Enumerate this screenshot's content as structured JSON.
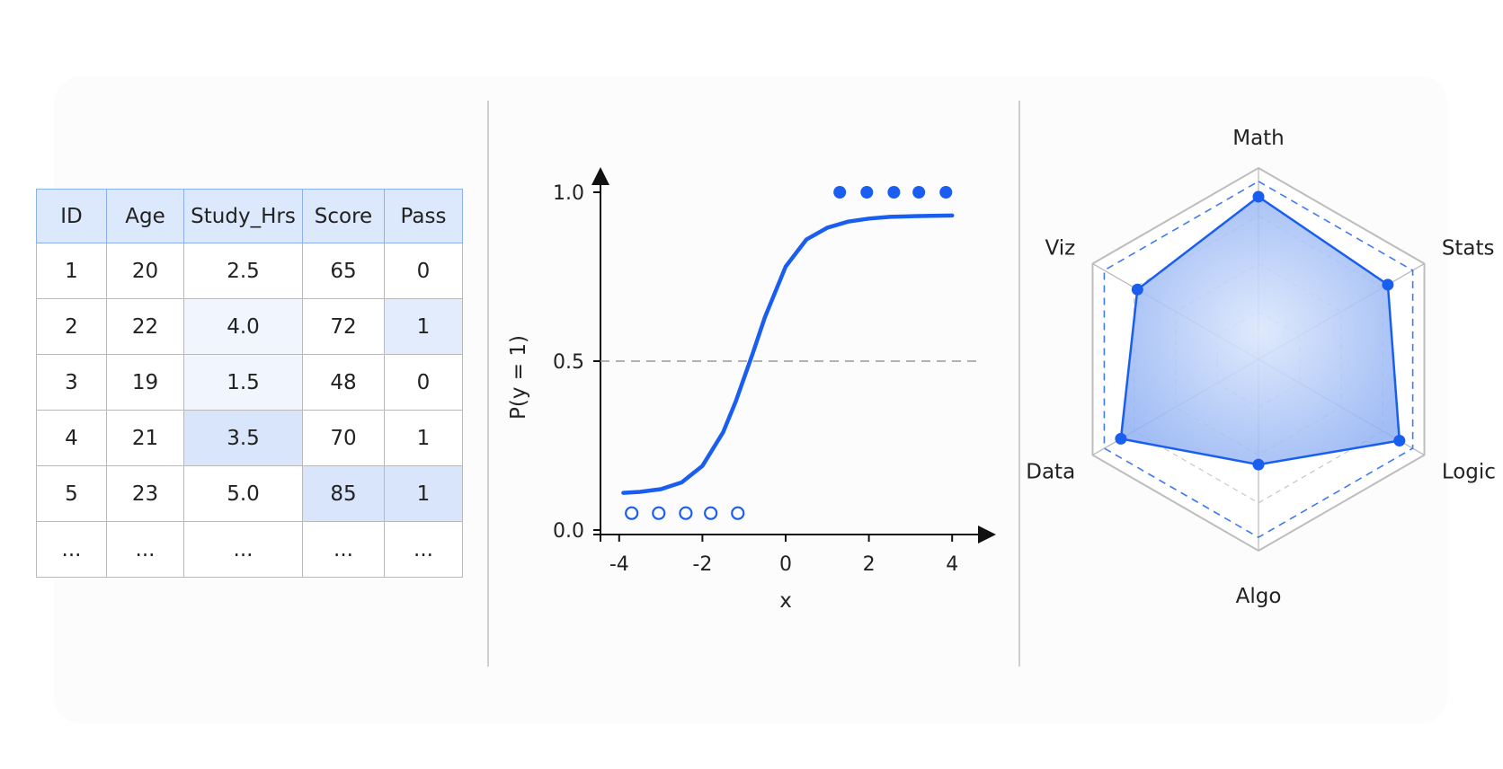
{
  "table": {
    "columns": [
      "ID",
      "Age",
      "Study_Hrs",
      "Score",
      "Pass"
    ],
    "rows": [
      [
        "1",
        "20",
        "2.5",
        "65",
        "0"
      ],
      [
        "2",
        "22",
        "4.0",
        "72",
        "1"
      ],
      [
        "3",
        "19",
        "1.5",
        "48",
        "0"
      ],
      [
        "4",
        "21",
        "3.5",
        "70",
        "1"
      ],
      [
        "5",
        "23",
        "5.0",
        "85",
        "1"
      ],
      [
        "...",
        "...",
        "...",
        "...",
        "..."
      ]
    ]
  },
  "chart_data": [
    {
      "type": "line",
      "title": "",
      "xlabel": "x",
      "ylabel": "P(y = 1)",
      "xlim": [
        -4.5,
        4.8
      ],
      "ylim": [
        0,
        1.05
      ],
      "x_ticks": [
        "-4",
        "-2",
        "0",
        "2",
        "4"
      ],
      "y_ticks": [
        "0.0",
        "0.5",
        "1.0"
      ],
      "threshold": 0.5,
      "grid": false,
      "series": [
        {
          "kind": "curve",
          "x": [
            -3.9,
            -3.5,
            -3.0,
            -2.5,
            -2.0,
            -1.5,
            -1.2,
            -1.0,
            -0.8,
            -0.5,
            0.0,
            0.5,
            1.0,
            1.5,
            2.0,
            2.5,
            3.0,
            3.5,
            4.0
          ],
          "values": [
            0.11,
            0.113,
            0.121,
            0.141,
            0.19,
            0.29,
            0.38,
            0.45,
            0.52,
            0.63,
            0.78,
            0.86,
            0.895,
            0.913,
            0.922,
            0.927,
            0.929,
            0.93,
            0.931
          ]
        },
        {
          "kind": "scatter-filled",
          "x": [
            1.3,
            1.95,
            2.6,
            3.2,
            3.85
          ],
          "values": [
            1.0,
            1.0,
            1.0,
            1.0,
            1.0
          ]
        },
        {
          "kind": "scatter-hollow",
          "x": [
            -3.7,
            -3.05,
            -2.4,
            -1.8,
            -1.15
          ],
          "values": [
            0.05,
            0.05,
            0.05,
            0.05,
            0.05
          ]
        }
      ]
    },
    {
      "type": "radar",
      "title": "",
      "categories": [
        "Math",
        "Stats",
        "Logic",
        "Algo",
        "Data",
        "Viz"
      ],
      "rmax": 1.0,
      "rings": 4,
      "series": [
        {
          "kind": "filled",
          "values": [
            0.85,
            0.78,
            0.85,
            0.55,
            0.83,
            0.73
          ]
        },
        {
          "kind": "dashed",
          "values": [
            0.93,
            0.93,
            0.93,
            0.93,
            0.93,
            0.93
          ]
        }
      ]
    }
  ],
  "colors": {
    "accent": "#1a5ef0",
    "fill": "#9dbaf4",
    "header": "#dce8fb",
    "grid": "#bdbdbd"
  }
}
